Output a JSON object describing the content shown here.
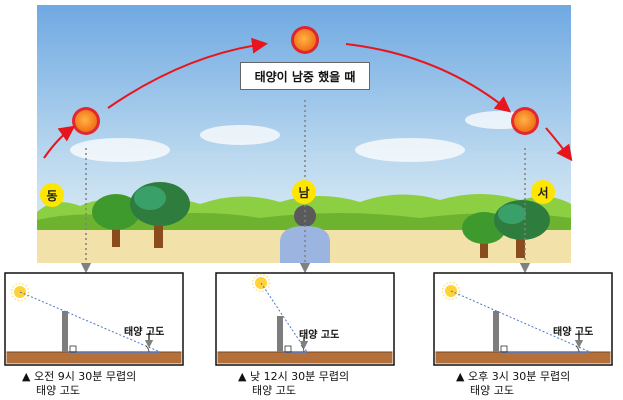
{
  "top_scene": {
    "callout_label": "태양이 남중 했을 때",
    "direction_east": "동",
    "direction_south": "남",
    "direction_west": "서"
  },
  "panels": [
    {
      "caption_line1": "▲ 오전 9시 30분 무렵의",
      "caption_line2": "태양 고도",
      "altitude_label": "태양 고도"
    },
    {
      "caption_line1": "▲ 낮 12시 30분 무렵의",
      "caption_line2": "태양 고도",
      "altitude_label": "태양 고도"
    },
    {
      "caption_line1": "▲ 오후 3시 30분 무렵의",
      "caption_line2": "태양 고도",
      "altitude_label": "태양 고도"
    }
  ],
  "colors": {
    "sky_top": "#7fb4e6",
    "sky_bottom": "#dfeef7",
    "ground": "#f2e1a8",
    "arc_arrow": "#e8151c",
    "sun_core": "#f28a1a",
    "dotted_line": "#8a8a8a",
    "soil": "#b5703a",
    "shadow_line": "#4b78c8"
  },
  "icons": {
    "sun": "sun-icon",
    "tree": "tree-icon",
    "person": "person-icon",
    "pole": "pole-icon"
  }
}
